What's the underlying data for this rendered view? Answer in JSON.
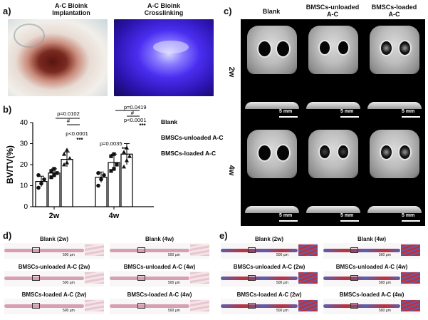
{
  "panels": {
    "a": "a)",
    "b": "b)",
    "c": "c)",
    "d": "d)",
    "e": "e)"
  },
  "panel_a": {
    "left_caption_line1": "A-C Bioink",
    "left_caption_line2": "Implantation",
    "right_caption_line1": "A-C Bioink",
    "right_caption_line2": "Crosslinking"
  },
  "panel_c": {
    "col_labels": [
      "Blank",
      "BMSCs-unloaded A-C",
      "BMSCs-loaded A-C"
    ],
    "col_label_lines": [
      [
        "Blank"
      ],
      [
        "BMSCs-unloaded",
        "A-C"
      ],
      [
        "BMSCs-loaded",
        "A-C"
      ]
    ],
    "row_labels": [
      "2w",
      "4w"
    ],
    "scale_label": "5 mm"
  },
  "panel_d": {
    "titles": [
      "Blank (2w)",
      "Blank (4w)",
      "BMSCs-unloaded A-C (2w)",
      "BMSCs-unloaded A-C (4w)",
      "BMSCs-loaded  A-C (2w)",
      "BMSCs-loaded  A-C (4w)"
    ],
    "scale_label": "500 μm",
    "colors": {
      "tissue": "#d7a0b0",
      "zoom": "#e8c6cf"
    }
  },
  "panel_e": {
    "titles": [
      "Blank (2w)",
      "Blank (4w)",
      "BMSCs-unloaded  A-C (2w)",
      "BMSCs-unloaded  A-C (4w)",
      "BMSCs-loaded  A-C (2w)",
      "BMSCs-loaded  A-C (4w)"
    ],
    "scale_label": "500 μm",
    "colors": {
      "blue": "#5a5fb0",
      "red": "#c0303a"
    }
  },
  "chart_data": {
    "type": "bar",
    "ylabel": "BV/TV(%)",
    "xlabel": "",
    "ylim": [
      0,
      40
    ],
    "yticks": [
      0,
      10,
      20,
      30,
      40
    ],
    "categories": [
      "2w",
      "4w"
    ],
    "series": [
      {
        "name": "Blank",
        "values": [
          12,
          14
        ],
        "errors": [
          2.5,
          2.5
        ],
        "points": [
          [
            9,
            11,
            13,
            15
          ],
          [
            10,
            13,
            15,
            16
          ]
        ],
        "marker": "circle"
      },
      {
        "name": "BMSCs-unloaded A-C",
        "values": [
          16,
          21
        ],
        "errors": [
          2,
          4
        ],
        "points": [
          [
            14,
            15,
            16,
            17,
            18
          ],
          [
            17,
            18,
            20,
            24,
            25
          ]
        ],
        "marker": "square"
      },
      {
        "name": "BMSCs-loaded A-C",
        "values": [
          22.5,
          25
        ],
        "errors": [
          3.5,
          5
        ],
        "points": [
          [
            20,
            21,
            23,
            25,
            27
          ],
          [
            19,
            22,
            24,
            26,
            28
          ]
        ],
        "marker": "triangle"
      }
    ],
    "annotations_2w": [
      "p=0.0102",
      "#",
      "p<0.0001",
      "***"
    ],
    "annotations_4w": [
      "p=0.0419",
      "#",
      "p<0.0001",
      "***",
      "p=0.0035",
      "**"
    ],
    "legend": "right",
    "colors": {
      "bar_fill": "#ffffff",
      "edge": "#000000",
      "point": "#111111"
    }
  }
}
